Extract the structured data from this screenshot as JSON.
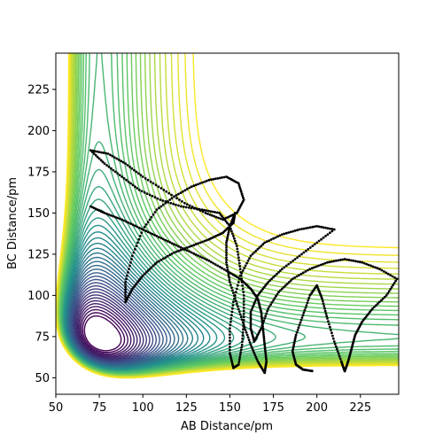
{
  "chart_data": {
    "type": "contour",
    "title": "",
    "xlabel": "AB Distance/pm",
    "ylabel": "BC Distance/pm",
    "xlim": [
      50,
      247
    ],
    "ylim": [
      40,
      247
    ],
    "xticks": [
      "50",
      "75",
      "100",
      "125",
      "150",
      "175",
      "200",
      "225"
    ],
    "yticks": [
      "50",
      "75",
      "100",
      "125",
      "150",
      "175",
      "200",
      "225"
    ],
    "grid": false,
    "legend": "none",
    "colormap": [
      "#440154",
      "#3b528b",
      "#21918c",
      "#5ec962",
      "#fde725"
    ],
    "trajectory_color": "#000000",
    "contour_levels": [
      {
        "level": 0.02,
        "color": "#440154"
      },
      {
        "level": 0.05,
        "color": "#46297a"
      },
      {
        "level": 0.09,
        "color": "#3f4788"
      },
      {
        "level": 0.14,
        "color": "#34608d"
      },
      {
        "level": 0.2,
        "color": "#2a788e"
      },
      {
        "level": 0.27,
        "color": "#21918c"
      },
      {
        "level": 0.35,
        "color": "#22a884"
      },
      {
        "level": 0.44,
        "color": "#43bf71"
      },
      {
        "level": 0.54,
        "color": "#7ad151"
      },
      {
        "level": 0.65,
        "color": "#bade28"
      },
      {
        "level": 0.78,
        "color": "#fde725"
      }
    ],
    "trajectory": [
      [
        70,
        154
      ],
      [
        78,
        150
      ],
      [
        88,
        146
      ],
      [
        98,
        141
      ],
      [
        108,
        136
      ],
      [
        118,
        131
      ],
      [
        128,
        126
      ],
      [
        138,
        121
      ],
      [
        148,
        115
      ],
      [
        156,
        110
      ],
      [
        162,
        104
      ],
      [
        166,
        98
      ],
      [
        168,
        90
      ],
      [
        169,
        80
      ],
      [
        170,
        70
      ],
      [
        171,
        60
      ],
      [
        170,
        53
      ],
      [
        166,
        60
      ],
      [
        162,
        70
      ],
      [
        158,
        82
      ],
      [
        154,
        95
      ],
      [
        150,
        108
      ],
      [
        148,
        120
      ],
      [
        148,
        132
      ],
      [
        150,
        142
      ],
      [
        153,
        150
      ],
      [
        152,
        144
      ],
      [
        146,
        138
      ],
      [
        138,
        134
      ],
      [
        128,
        130
      ],
      [
        118,
        126
      ],
      [
        108,
        120
      ],
      [
        100,
        112
      ],
      [
        94,
        104
      ],
      [
        90,
        96
      ],
      [
        90,
        108
      ],
      [
        94,
        124
      ],
      [
        100,
        140
      ],
      [
        108,
        152
      ],
      [
        118,
        160
      ],
      [
        128,
        166
      ],
      [
        138,
        170
      ],
      [
        148,
        172
      ],
      [
        155,
        168
      ],
      [
        158,
        158
      ],
      [
        154,
        150
      ],
      [
        146,
        146
      ],
      [
        136,
        150
      ],
      [
        124,
        156
      ],
      [
        112,
        164
      ],
      [
        100,
        172
      ],
      [
        90,
        180
      ],
      [
        80,
        186
      ],
      [
        70,
        188
      ],
      [
        78,
        180
      ],
      [
        88,
        172
      ],
      [
        98,
        164
      ],
      [
        110,
        158
      ],
      [
        122,
        154
      ],
      [
        134,
        152
      ],
      [
        144,
        150
      ],
      [
        150,
        142
      ],
      [
        154,
        130
      ],
      [
        156,
        116
      ],
      [
        158,
        100
      ],
      [
        158,
        85
      ],
      [
        157,
        70
      ],
      [
        155,
        58
      ],
      [
        152,
        56
      ],
      [
        150,
        65
      ],
      [
        150,
        80
      ],
      [
        152,
        96
      ],
      [
        156,
        112
      ],
      [
        162,
        124
      ],
      [
        170,
        132
      ],
      [
        180,
        137
      ],
      [
        190,
        140
      ],
      [
        200,
        142
      ],
      [
        210,
        140
      ],
      [
        200,
        132
      ],
      [
        190,
        124
      ],
      [
        180,
        116
      ],
      [
        172,
        108
      ],
      [
        166,
        100
      ],
      [
        162,
        90
      ],
      [
        162,
        80
      ],
      [
        164,
        72
      ],
      [
        168,
        80
      ],
      [
        172,
        92
      ],
      [
        178,
        102
      ],
      [
        186,
        110
      ],
      [
        196,
        116
      ],
      [
        206,
        120
      ],
      [
        216,
        122
      ],
      [
        226,
        120
      ],
      [
        236,
        116
      ],
      [
        246,
        110
      ],
      [
        240,
        100
      ],
      [
        232,
        92
      ],
      [
        226,
        84
      ],
      [
        222,
        76
      ],
      [
        220,
        68
      ],
      [
        218,
        60
      ],
      [
        216,
        54
      ],
      [
        214,
        60
      ],
      [
        210,
        72
      ],
      [
        206,
        86
      ],
      [
        203,
        98
      ],
      [
        200,
        106
      ],
      [
        196,
        100
      ],
      [
        192,
        88
      ],
      [
        188,
        76
      ],
      [
        186,
        66
      ],
      [
        188,
        58
      ],
      [
        192,
        55
      ],
      [
        198,
        54
      ]
    ]
  }
}
